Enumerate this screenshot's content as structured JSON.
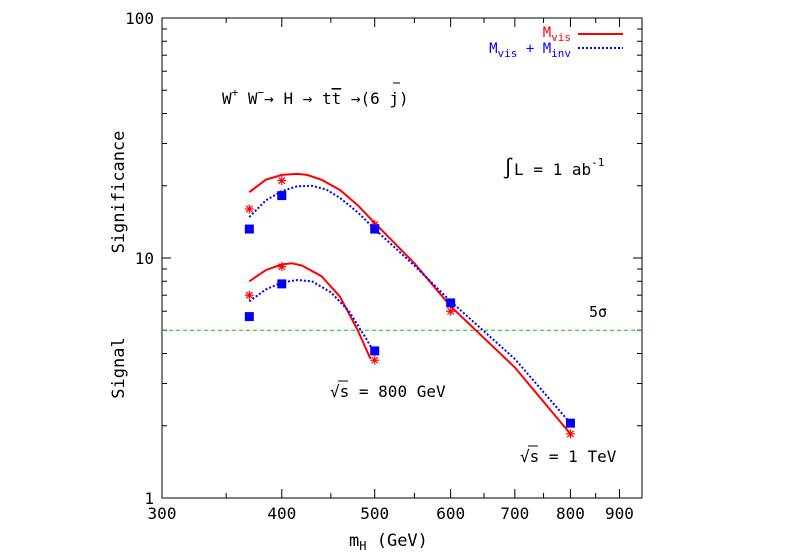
{
  "chart_data": {
    "type": "line",
    "xlabel": {
      "main": "m",
      "sub": "H",
      "rest": " (GeV)"
    },
    "ylabel": {
      "upper": "Significance",
      "lower": "Signal"
    },
    "x_scale": "log",
    "y_scale": "log",
    "xlim": [
      300,
      950
    ],
    "ylim": [
      1,
      100
    ],
    "x_ticks": [
      {
        "value": 300,
        "label": "300"
      },
      {
        "value": 400,
        "label": "400"
      },
      {
        "value": 500,
        "label": "500"
      },
      {
        "value": 600,
        "label": "600"
      },
      {
        "value": 700,
        "label": "700"
      },
      {
        "value": 800,
        "label": "800"
      },
      {
        "value": 900,
        "label": "900"
      }
    ],
    "x_minor_ticks": [
      350,
      450,
      550,
      650,
      750,
      850
    ],
    "y_ticks": [
      {
        "value": 1,
        "label": "1"
      },
      {
        "value": 10,
        "label": "10"
      },
      {
        "value": 100,
        "label": "100"
      }
    ],
    "y_minor_ticks": [
      2,
      3,
      4,
      5,
      6,
      7,
      8,
      9,
      20,
      30,
      40,
      50,
      60,
      70,
      80,
      90
    ],
    "grid": false,
    "legend": {
      "position": "top-right",
      "entries": [
        {
          "main": "M",
          "sub": "vis",
          "color": "#ff0000",
          "style": "solid"
        },
        {
          "main": "M",
          "sub": "vis",
          "plus": " + ",
          "main2": "M",
          "sub2": "inv",
          "color": "#0000ff",
          "style": "dotted"
        }
      ]
    },
    "process_label": {
      "w1": "W",
      "w1_sup": "+",
      "w2": "W",
      "w2_sup": "−",
      "rest1": "→ H → t",
      "t_bar": "t",
      "rest2": " →(6 j)"
    },
    "luminosity_label": {
      "integral": "∫",
      "text": "L = 1 ab",
      "sup": "-1"
    },
    "threshold": {
      "y": 5,
      "label": "5σ",
      "color": "#00cc00"
    },
    "energy_labels": [
      {
        "sqrt": "√",
        "text": "s = 800 GeV"
      },
      {
        "sqrt": "√",
        "text": "s = 1 TeV"
      }
    ],
    "series": [
      {
        "name": "M_vis (√s = 1 TeV)",
        "color": "#ff0000",
        "marker": "star",
        "style": "solid",
        "x": [
          370,
          400,
          500,
          600,
          800
        ],
        "y": [
          16,
          21,
          13.8,
          6,
          1.85
        ],
        "curve_x": [
          370,
          385,
          400,
          415,
          425,
          440,
          460,
          480,
          500,
          550,
          600,
          700,
          800
        ],
        "curve_y": [
          18.8,
          21.2,
          22.2,
          22.4,
          22.2,
          21.2,
          19.2,
          16.6,
          14.0,
          9.5,
          6.3,
          3.5,
          1.85
        ]
      },
      {
        "name": "M_vis + M_inv (√s = 1 TeV)",
        "color": "#0000ff",
        "marker": "square",
        "style": "dotted",
        "x": [
          370,
          400,
          500,
          600,
          800
        ],
        "y": [
          13.2,
          18.2,
          13.2,
          6.5,
          2.05
        ],
        "curve_x": [
          370,
          385,
          400,
          415,
          430,
          445,
          460,
          480,
          500,
          550,
          600,
          700,
          800
        ],
        "curve_y": [
          14.8,
          17.4,
          19.0,
          19.9,
          20.0,
          19.3,
          17.8,
          15.5,
          13.2,
          9.3,
          6.6,
          3.8,
          2.05
        ]
      },
      {
        "name": "M_vis (√s = 800 GeV)",
        "color": "#ff0000",
        "marker": "star",
        "style": "solid",
        "x": [
          370,
          400,
          500
        ],
        "y": [
          7,
          9.2,
          3.75
        ],
        "curve_x": [
          370,
          385,
          400,
          410,
          420,
          440,
          460,
          480,
          495
        ],
        "curve_y": [
          8.0,
          8.9,
          9.4,
          9.5,
          9.3,
          8.4,
          6.9,
          5.0,
          3.8
        ]
      },
      {
        "name": "M_vis + M_inv (√s = 800 GeV)",
        "color": "#0000ff",
        "marker": "square",
        "style": "dotted",
        "x": [
          370,
          400,
          500
        ],
        "y": [
          5.7,
          7.8,
          4.1
        ],
        "curve_x": [
          370,
          385,
          400,
          415,
          430,
          450,
          470,
          490,
          500
        ],
        "curve_y": [
          6.6,
          7.4,
          7.9,
          8.1,
          8.0,
          7.2,
          6.0,
          4.6,
          4.0
        ]
      }
    ]
  }
}
